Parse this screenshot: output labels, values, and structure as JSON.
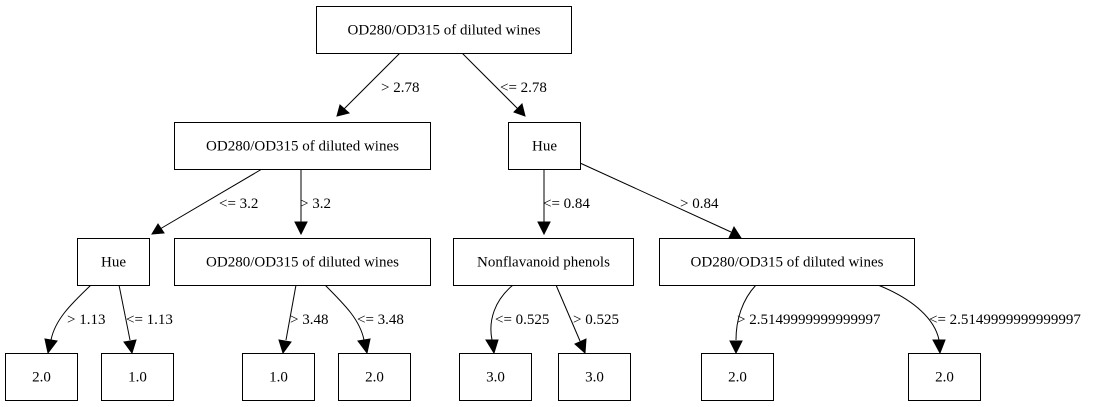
{
  "diagram": {
    "nodes": [
      {
        "id": "root",
        "label": "OD280/OD315 of diluted wines"
      },
      {
        "id": "n_l",
        "label": "OD280/OD315 of diluted wines"
      },
      {
        "id": "n_r",
        "label": "Hue"
      },
      {
        "id": "n_ll",
        "label": "Hue"
      },
      {
        "id": "n_lr",
        "label": "OD280/OD315 of diluted wines"
      },
      {
        "id": "n_rl",
        "label": "Nonflavanoid phenols"
      },
      {
        "id": "n_rr",
        "label": "OD280/OD315 of diluted wines"
      },
      {
        "id": "leaf1",
        "label": "2.0"
      },
      {
        "id": "leaf2",
        "label": "1.0"
      },
      {
        "id": "leaf3",
        "label": "1.0"
      },
      {
        "id": "leaf4",
        "label": "2.0"
      },
      {
        "id": "leaf5",
        "label": "3.0"
      },
      {
        "id": "leaf6",
        "label": "3.0"
      },
      {
        "id": "leaf7",
        "label": "2.0"
      },
      {
        "id": "leaf8",
        "label": "2.0"
      }
    ],
    "edges": [
      {
        "from": "root",
        "to": "n_l",
        "label": "> 2.78"
      },
      {
        "from": "root",
        "to": "n_r",
        "label": "<= 2.78"
      },
      {
        "from": "n_l",
        "to": "n_ll",
        "label": "<= 3.2"
      },
      {
        "from": "n_l",
        "to": "n_lr",
        "label": "> 3.2"
      },
      {
        "from": "n_r",
        "to": "n_rl",
        "label": "<= 0.84"
      },
      {
        "from": "n_r",
        "to": "n_rr",
        "label": "> 0.84"
      },
      {
        "from": "n_ll",
        "to": "leaf1",
        "label": "> 1.13"
      },
      {
        "from": "n_ll",
        "to": "leaf2",
        "label": "<= 1.13"
      },
      {
        "from": "n_lr",
        "to": "leaf3",
        "label": "> 3.48"
      },
      {
        "from": "n_lr",
        "to": "leaf4",
        "label": "<= 3.48"
      },
      {
        "from": "n_rl",
        "to": "leaf5",
        "label": "<= 0.525"
      },
      {
        "from": "n_rl",
        "to": "leaf6",
        "label": "> 0.525"
      },
      {
        "from": "n_rr",
        "to": "leaf7",
        "label": "> 2.5149999999999997"
      },
      {
        "from": "n_rr",
        "to": "leaf8",
        "label": "<= 2.5149999999999997"
      }
    ]
  }
}
